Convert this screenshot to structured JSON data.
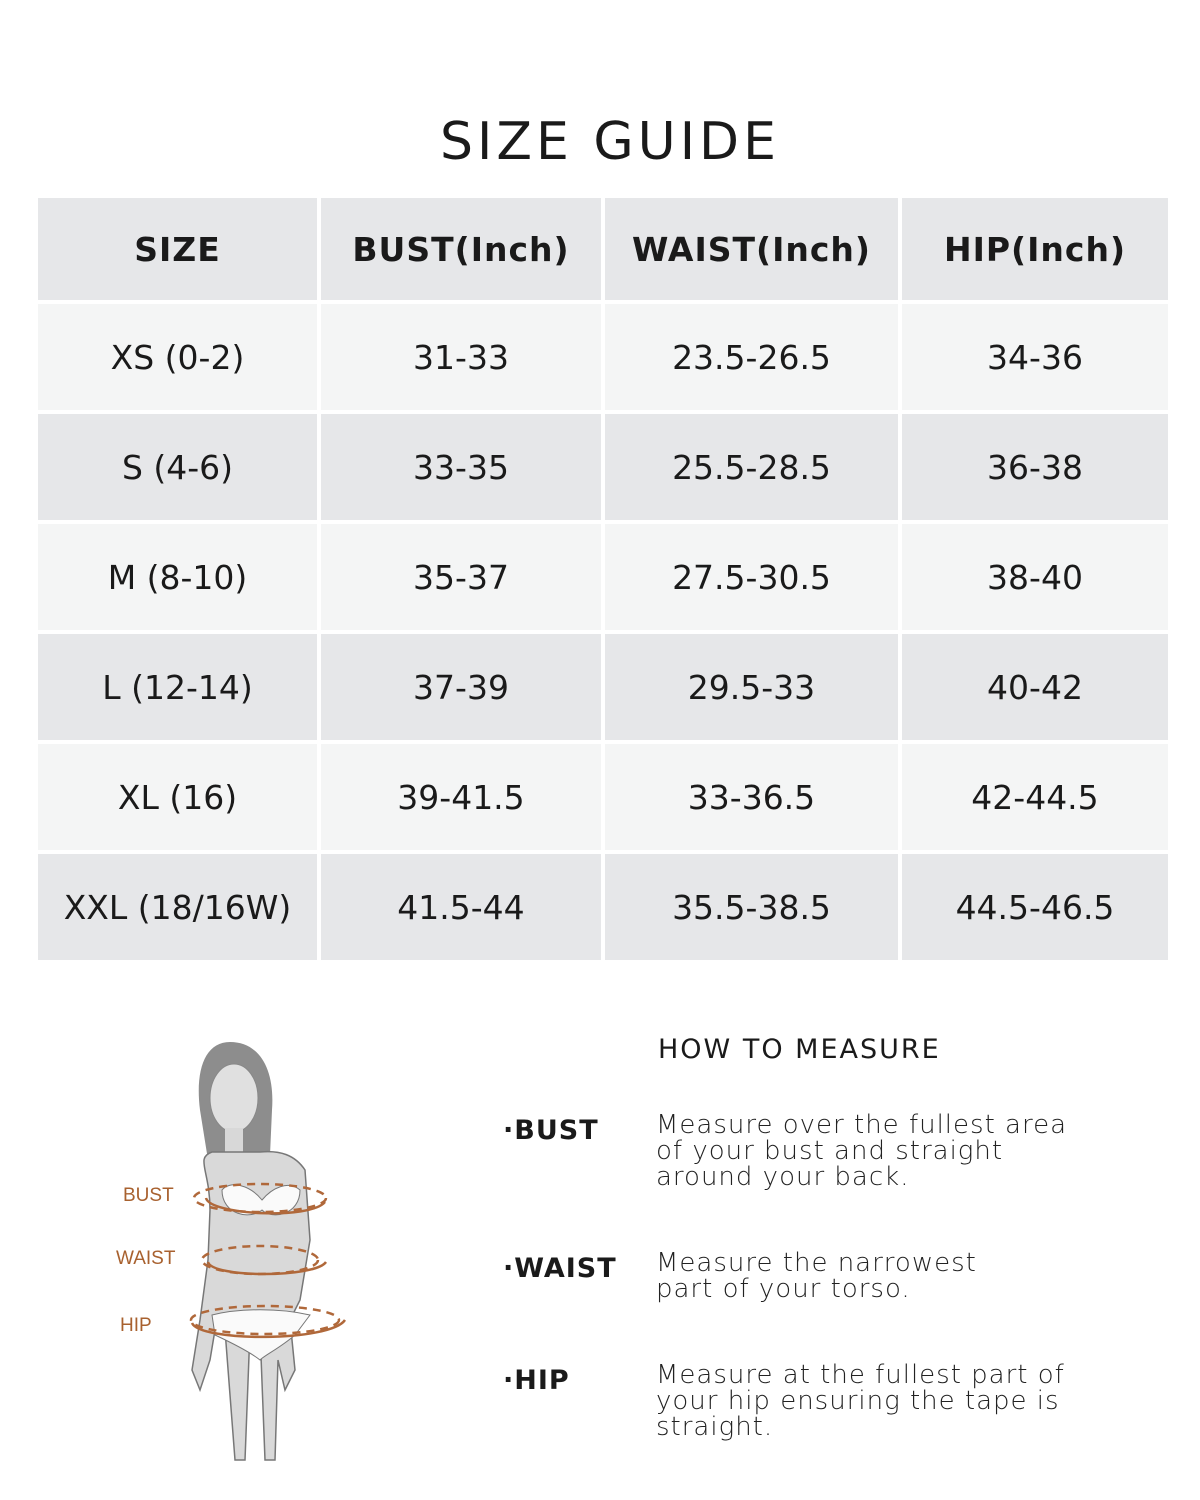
{
  "title": "SIZE GUIDE",
  "table": {
    "headers": [
      "SIZE",
      "BUST(Inch)",
      "WAIST(Inch)",
      "HIP(Inch)"
    ],
    "rows": [
      [
        "XS (0-2)",
        "31-33",
        "23.5-26.5",
        "34-36"
      ],
      [
        "S (4-6)",
        "33-35",
        "25.5-28.5",
        "36-38"
      ],
      [
        "M (8-10)",
        "35-37",
        "27.5-30.5",
        "38-40"
      ],
      [
        "L (12-14)",
        "37-39",
        "29.5-33",
        "40-42"
      ],
      [
        "XL (16)",
        "39-41.5",
        "33-36.5",
        "42-44.5"
      ],
      [
        "XXL (18/16W)",
        "41.5-44",
        "35.5-38.5",
        "44.5-46.5"
      ]
    ]
  },
  "figure": {
    "labels": [
      "BUST",
      "WAIST",
      "HIP"
    ],
    "accent": "#a8612f"
  },
  "how_to": {
    "title": "HOW TO MEASURE",
    "items": [
      {
        "label": "BUST",
        "lines": [
          "Measure over the fullest area",
          "of your bust and straight",
          "around your back."
        ]
      },
      {
        "label": "WAIST",
        "lines": [
          "Measure the narrowest",
          "part of your torso."
        ]
      },
      {
        "label": "HIP",
        "lines": [
          "Measure at the fullest part of",
          "your hip ensuring the tape is",
          "straight."
        ]
      }
    ]
  }
}
